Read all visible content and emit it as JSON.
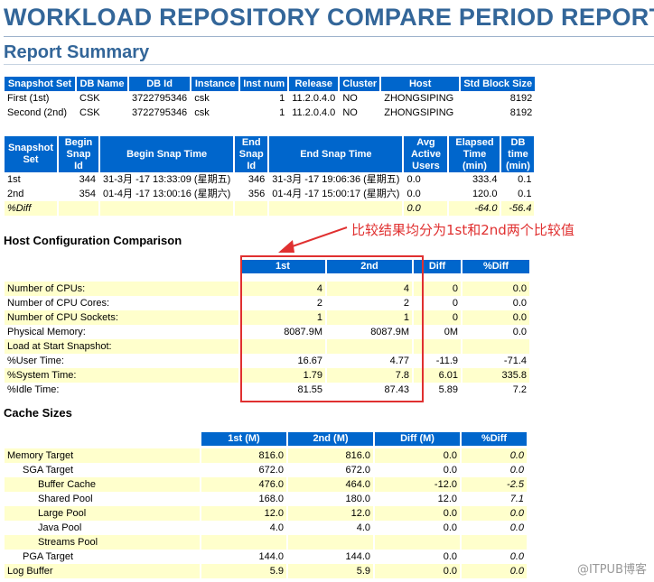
{
  "title": "WORKLOAD REPOSITORY COMPARE PERIOD REPORT",
  "subtitle": "Report Summary",
  "db_table": {
    "headers": [
      "Snapshot Set",
      "DB Name",
      "DB Id",
      "Instance",
      "Inst num",
      "Release",
      "Cluster",
      "Host",
      "Std Block Size"
    ],
    "rows": [
      [
        "First (1st)",
        "CSK",
        "3722795346",
        "csk",
        "1",
        "11.2.0.4.0",
        "NO",
        "ZHONGSIPING",
        "8192"
      ],
      [
        "Second (2nd)",
        "CSK",
        "3722795346",
        "csk",
        "1",
        "11.2.0.4.0",
        "NO",
        "ZHONGSIPING",
        "8192"
      ]
    ]
  },
  "snap_table": {
    "headers": [
      "Snapshot Set",
      "Begin Snap Id",
      "Begin Snap Time",
      "End Snap Id",
      "End Snap Time",
      "Avg Active Users",
      "Elapsed Time (min)",
      "DB time (min)"
    ],
    "rows": [
      [
        "1st",
        "344",
        "31-3月 -17 13:33:09 (星期五)",
        "346",
        "31-3月 -17 19:06:36 (星期五)",
        "0.0",
        "333.4",
        "0.1"
      ],
      [
        "2nd",
        "354",
        "01-4月 -17 13:00:16 (星期六)",
        "356",
        "01-4月 -17 15:00:17 (星期六)",
        "0.0",
        "120.0",
        "0.1"
      ],
      [
        "%Diff",
        "",
        "",
        "",
        "",
        "0.0",
        "-64.0",
        "-56.4"
      ]
    ]
  },
  "host_section_title": "Host Configuration Comparison",
  "host_table": {
    "headers": [
      "",
      "1st",
      "2nd",
      "Diff",
      "%Diff"
    ],
    "rows": [
      [
        "Number of CPUs:",
        "4",
        "4",
        "0",
        "0.0"
      ],
      [
        "Number of CPU Cores:",
        "2",
        "2",
        "0",
        "0.0"
      ],
      [
        "Number of CPU Sockets:",
        "1",
        "1",
        "0",
        "0.0"
      ],
      [
        "Physical Memory:",
        "8087.9M",
        "8087.9M",
        "0M",
        "0.0"
      ],
      [
        "Load at Start Snapshot:",
        "",
        "",
        "",
        ""
      ],
      [
        "%User Time:",
        "16.67",
        "4.77",
        "-11.9",
        "-71.4"
      ],
      [
        "%System Time:",
        "1.79",
        "7.8",
        "6.01",
        "335.8"
      ],
      [
        "%Idle Time:",
        "81.55",
        "87.43",
        "5.89",
        "7.2"
      ]
    ]
  },
  "cache_section_title": "Cache Sizes",
  "cache_table": {
    "headers": [
      "",
      "1st (M)",
      "2nd (M)",
      "Diff (M)",
      "%Diff"
    ],
    "rows": [
      [
        "Memory Target",
        "816.0",
        "816.0",
        "0.0",
        "0.0"
      ],
      [
        "SGA Target",
        "672.0",
        "672.0",
        "0.0",
        "0.0"
      ],
      [
        "Buffer Cache",
        "476.0",
        "464.0",
        "-12.0",
        "-2.5"
      ],
      [
        "Shared Pool",
        "168.0",
        "180.0",
        "12.0",
        "7.1"
      ],
      [
        "Large Pool",
        "12.0",
        "12.0",
        "0.0",
        "0.0"
      ],
      [
        "Java Pool",
        "4.0",
        "4.0",
        "0.0",
        "0.0"
      ],
      [
        "Streams Pool",
        "",
        "",
        "",
        ""
      ],
      [
        "PGA Target",
        "144.0",
        "144.0",
        "0.0",
        "0.0"
      ],
      [
        "Log Buffer",
        "5.9",
        "5.9",
        "0.0",
        "0.0"
      ]
    ]
  },
  "annotation": "比较结果均分为1st和2nd两个比较值",
  "watermark": "@ITPUB博客",
  "colors": {
    "header_bg": "#0066cc",
    "alt_row_bg": "#ffffcc",
    "title": "#336699",
    "annotation": "#e03030"
  }
}
